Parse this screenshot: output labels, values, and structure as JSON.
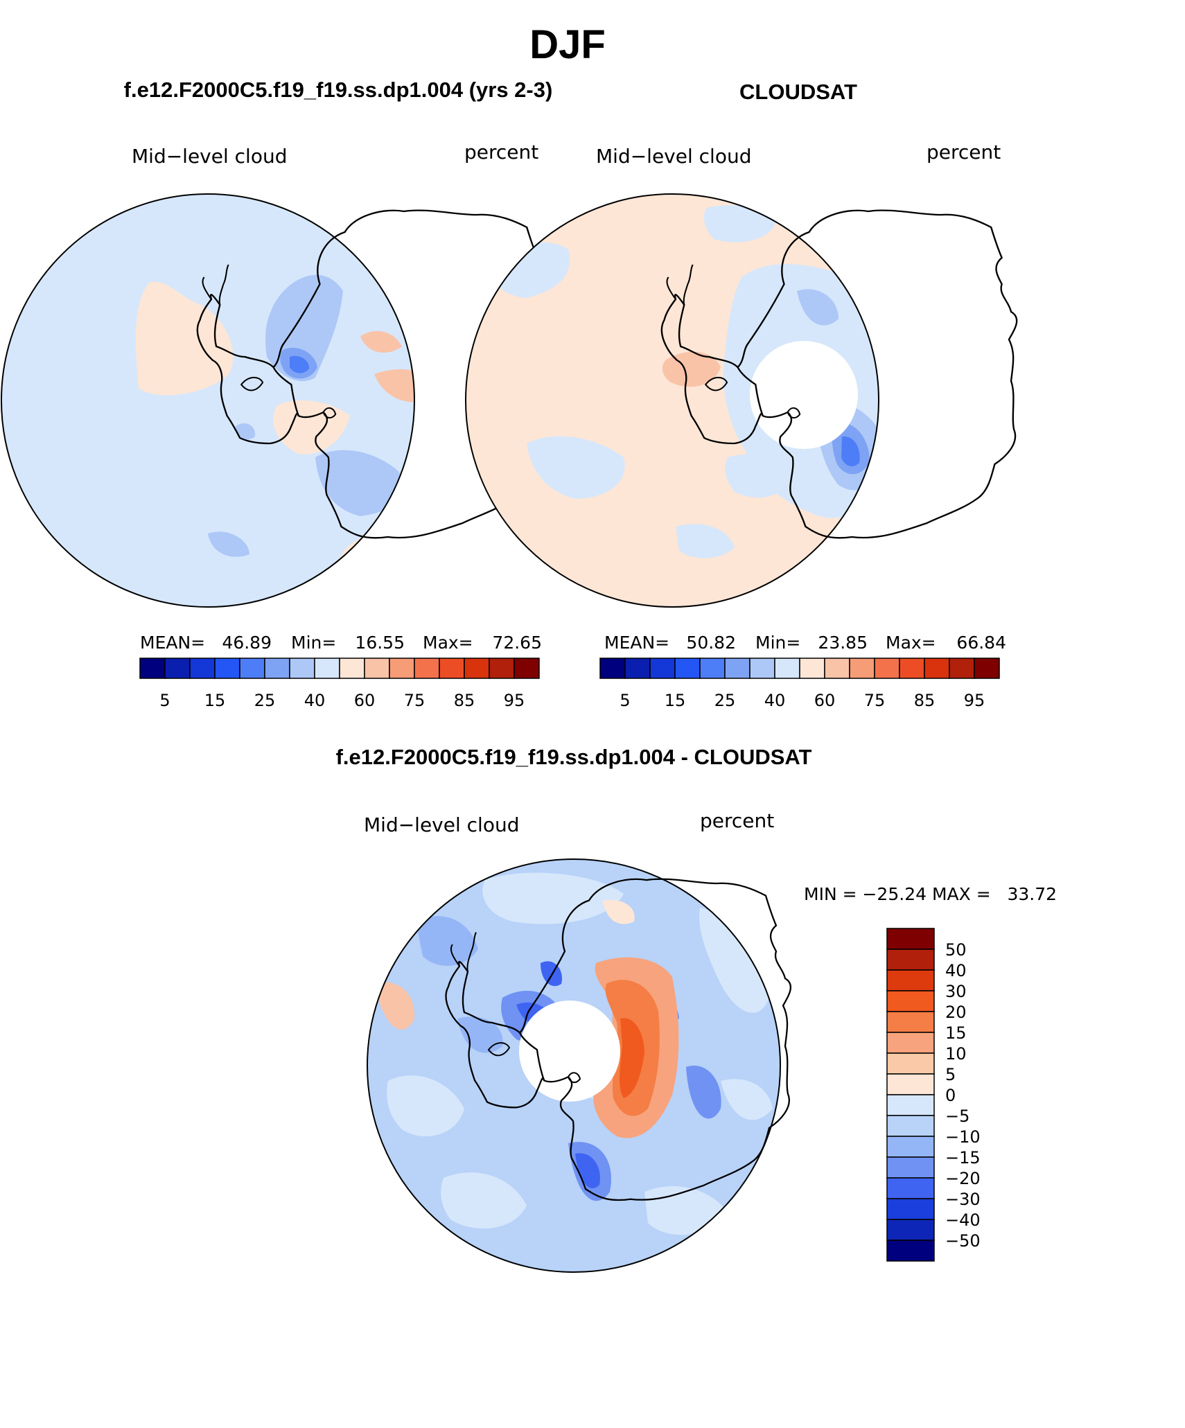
{
  "page_title": "DJF",
  "top_left": {
    "title": "f.e12.F2000C5.f19_f19.ss.dp1.004 (yrs 2-3)",
    "left_label": "Mid−level cloud",
    "right_label": "percent",
    "stats": {
      "mean_label": "MEAN=",
      "mean": "46.89",
      "min_label": "Min=",
      "min": "16.55",
      "max_label": "Max=",
      "max": "72.65"
    }
  },
  "top_right": {
    "title": "CLOUDSAT",
    "left_label": "Mid−level cloud",
    "right_label": "percent",
    "stats": {
      "mean_label": "MEAN=",
      "mean": "50.82",
      "min_label": "Min=",
      "min": "23.85",
      "max_label": "Max=",
      "max": "66.84"
    }
  },
  "bottom": {
    "title": "f.e12.F2000C5.f19_f19.ss.dp1.004 - CLOUDSAT",
    "left_label": "Mid−level cloud",
    "right_label": "percent",
    "minmax": "MIN = −25.24 MAX =   33.72"
  },
  "chart_data": [
    {
      "type": "heatmap",
      "projection": "south polar stereographic",
      "title": "f.e12.F2000C5.f19_f19.ss.dp1.004 (yrs 2-3)",
      "variable": "Mid-level cloud",
      "units": "percent",
      "mean": 46.89,
      "min": 16.55,
      "max": 72.65,
      "colorbar_ticks": [
        5,
        15,
        25,
        40,
        60,
        75,
        85,
        95
      ]
    },
    {
      "type": "heatmap",
      "projection": "south polar stereographic",
      "title": "CLOUDSAT",
      "variable": "Mid-level cloud",
      "units": "percent",
      "mean": 50.82,
      "min": 23.85,
      "max": 66.84,
      "colorbar_ticks": [
        5,
        15,
        25,
        40,
        60,
        75,
        85,
        95
      ],
      "missing_data": "polar hole near the South Pole"
    },
    {
      "type": "heatmap",
      "projection": "south polar stereographic",
      "title": "f.e12.F2000C5.f19_f19.ss.dp1.004 - CLOUDSAT",
      "variable": "Mid-level cloud",
      "units": "percent",
      "min": -25.24,
      "max": 33.72,
      "colorbar_ticks": [
        "50",
        "40",
        "30",
        "20",
        "15",
        "10",
        "5",
        "0",
        "−5",
        "−10",
        "−15",
        "−20",
        "−30",
        "−40",
        "−50"
      ]
    }
  ],
  "colors": {
    "abs_scale": [
      "#00007f",
      "#0a1fb0",
      "#1437d8",
      "#2356f4",
      "#4d7ef7",
      "#7fa3f4",
      "#adc8f7",
      "#d6e7fb",
      "#fde6d6",
      "#f9c3a8",
      "#f69c77",
      "#f3724b",
      "#ec4d24",
      "#d8330c",
      "#b0200b",
      "#7f0000"
    ],
    "diff_scale": [
      "#7f0000",
      "#b0200b",
      "#dd3b0d",
      "#f05a1f",
      "#f47e45",
      "#f7a37d",
      "#facaa8",
      "#fde6d6",
      "#d6e7fb",
      "#b8d2f8",
      "#95b6f6",
      "#6f92f3",
      "#3e64f1",
      "#1a3fdc",
      "#0d26b8",
      "#00007f"
    ]
  }
}
